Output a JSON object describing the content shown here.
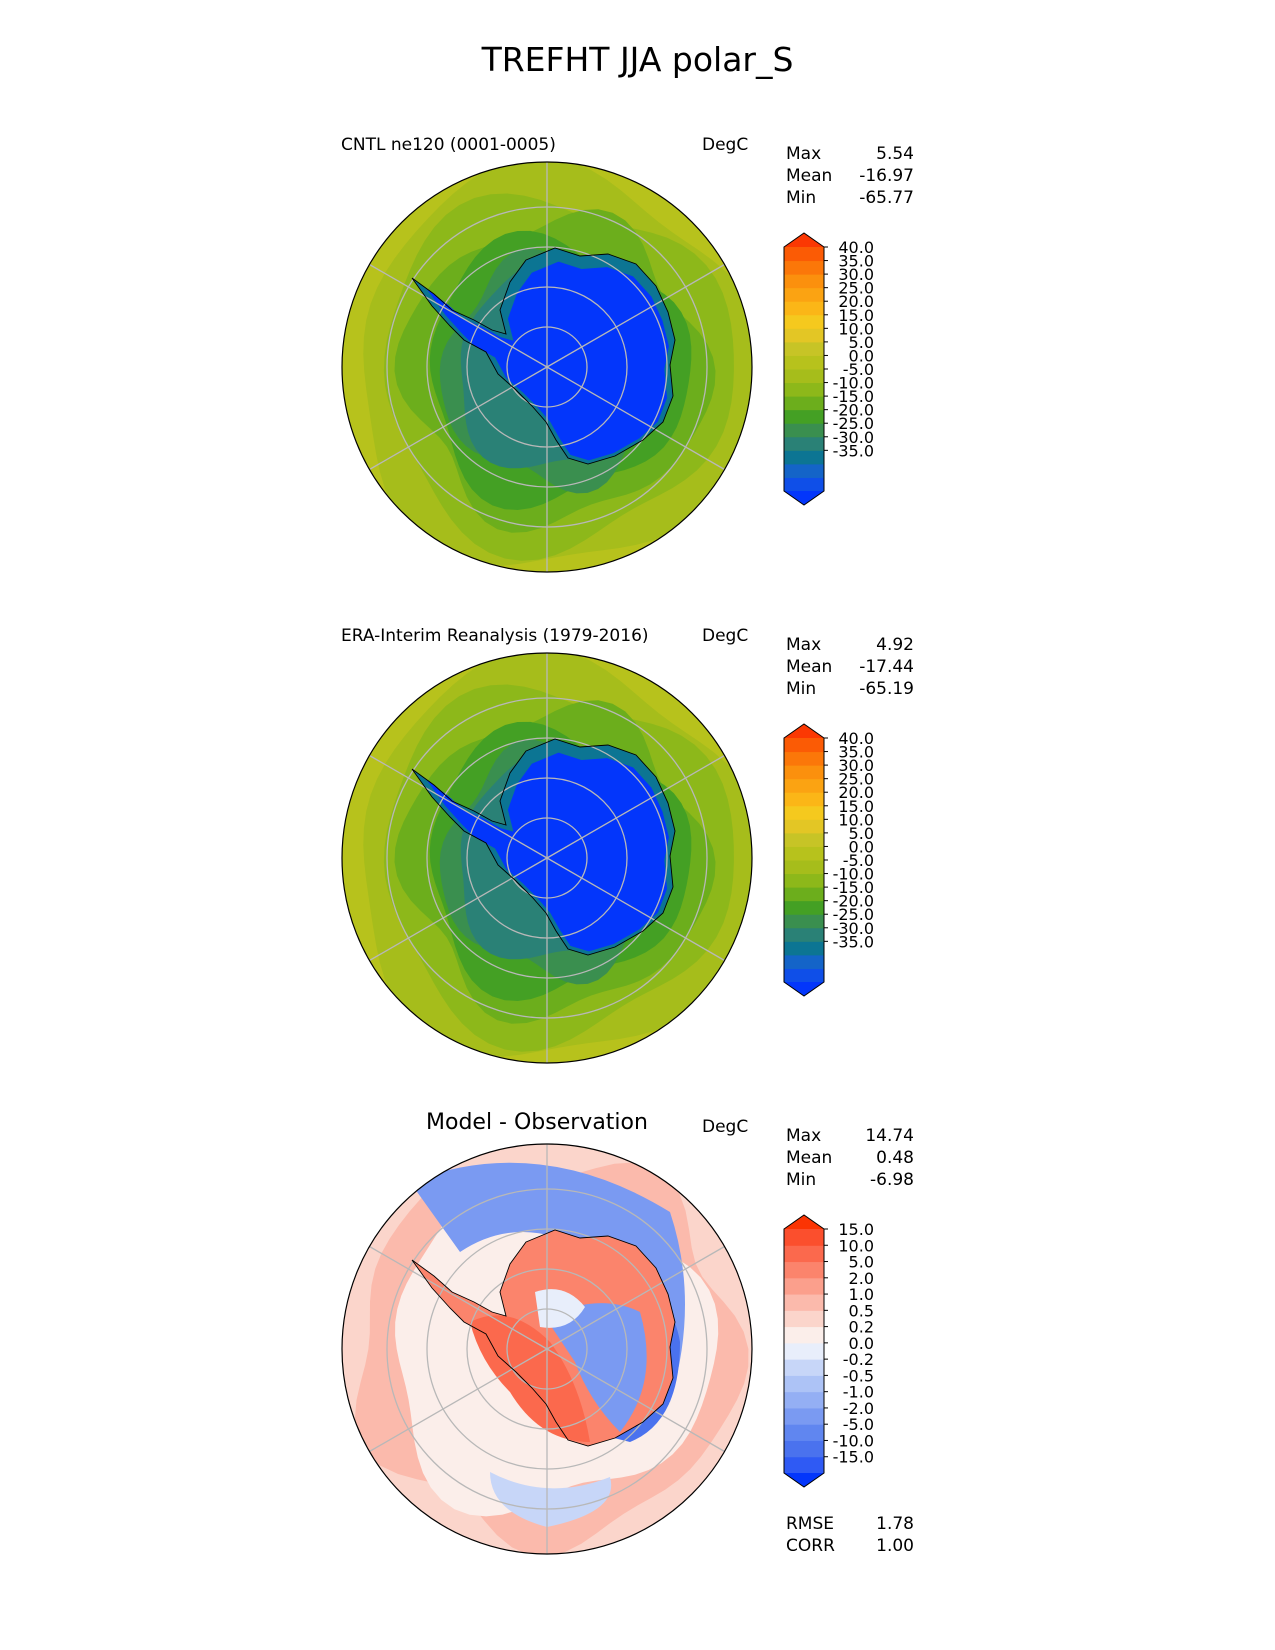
{
  "figure": {
    "title": "TREFHT JJA polar_S"
  },
  "colors": {
    "seq": [
      "#0336fb",
      "#0f4fe8",
      "#1464c8",
      "#0c7593",
      "#2a8176",
      "#3a8f4f",
      "#44a024",
      "#6cae1c",
      "#8db81a",
      "#a6bd1b",
      "#b7c21c",
      "#c7c426",
      "#e3c625",
      "#f5c91e",
      "#fbb617",
      "#fba312",
      "#fb900d",
      "#fb7709",
      "#fb5b05",
      "#fb3803"
    ],
    "div": [
      "#0336fb",
      "#2f5af4",
      "#4a72ee",
      "#6086f0",
      "#7a9af2",
      "#94aff4",
      "#adc3f6",
      "#c7d6f8",
      "#e8eefb",
      "#fbeeea",
      "#fbd5cb",
      "#fbbaac",
      "#fb9f8c",
      "#fb846c",
      "#fb694d",
      "#fb4f2d",
      "#fb3403"
    ]
  },
  "chart_data": [
    {
      "type": "heatmap",
      "title": "CNTL ne120 (0001-0005)",
      "units": "DegC",
      "stats": [
        {
          "label": "Max",
          "value": "5.54"
        },
        {
          "label": "Mean",
          "value": "-16.97"
        },
        {
          "label": "Min",
          "value": "-65.77"
        }
      ],
      "colorbar": {
        "levels": [
          "40.0",
          "35.0",
          "30.0",
          "25.0",
          "20.0",
          "15.0",
          "10.0",
          "5.0",
          "0.0",
          "-5.0",
          "-10.0",
          "-15.0",
          "-20.0",
          "-25.0",
          "-30.0",
          "-35.0"
        ]
      }
    },
    {
      "type": "heatmap",
      "title": "ERA-Interim Reanalysis (1979-2016)",
      "units": "DegC",
      "stats": [
        {
          "label": "Max",
          "value": "4.92"
        },
        {
          "label": "Mean",
          "value": "-17.44"
        },
        {
          "label": "Min",
          "value": "-65.19"
        }
      ],
      "colorbar": {
        "levels": [
          "40.0",
          "35.0",
          "30.0",
          "25.0",
          "20.0",
          "15.0",
          "10.0",
          "5.0",
          "0.0",
          "-5.0",
          "-10.0",
          "-15.0",
          "-20.0",
          "-25.0",
          "-30.0",
          "-35.0"
        ]
      }
    },
    {
      "type": "heatmap",
      "title": "Model - Observation",
      "units": "DegC",
      "stats": [
        {
          "label": "Max",
          "value": "14.74"
        },
        {
          "label": "Mean",
          "value": "0.48"
        },
        {
          "label": "Min",
          "value": "-6.98"
        }
      ],
      "extra_stats": [
        {
          "label": "RMSE",
          "value": "1.78"
        },
        {
          "label": "CORR",
          "value": "1.00"
        }
      ],
      "colorbar": {
        "levels": [
          "15.0",
          "10.0",
          "5.0",
          "2.0",
          "1.0",
          "0.5",
          "0.2",
          "0.0",
          "-0.2",
          "-0.5",
          "-1.0",
          "-2.0",
          "-5.0",
          "-10.0",
          "-15.0"
        ]
      }
    }
  ]
}
